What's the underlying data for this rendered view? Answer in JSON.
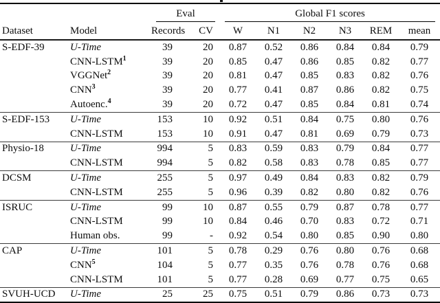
{
  "table": {
    "header": {
      "dataset": "Dataset",
      "model": "Model",
      "eval_group": "Eval",
      "f1_group": "Global F1 scores",
      "records": "Records",
      "cv": "CV",
      "f1_cols": [
        "W",
        "N1",
        "N2",
        "N3",
        "REM",
        "mean"
      ]
    },
    "groups": [
      {
        "dataset": "S-EDF-39",
        "rows": [
          {
            "model": "U-Time",
            "italic": true,
            "sup": "",
            "records": "39",
            "cv": "20",
            "scores": [
              "0.87",
              "0.52",
              "0.86",
              "0.84",
              "0.84",
              "0.79"
            ]
          },
          {
            "model": "CNN-LSTM",
            "italic": false,
            "sup": "1",
            "records": "39",
            "cv": "20",
            "scores": [
              "0.85",
              "0.47",
              "0.86",
              "0.85",
              "0.82",
              "0.77"
            ]
          },
          {
            "model": "VGGNet",
            "italic": false,
            "sup": "2",
            "records": "39",
            "cv": "20",
            "scores": [
              "0.81",
              "0.47",
              "0.85",
              "0.83",
              "0.82",
              "0.76"
            ]
          },
          {
            "model": "CNN",
            "italic": false,
            "sup": "3",
            "records": "39",
            "cv": "20",
            "scores": [
              "0.77",
              "0.41",
              "0.87",
              "0.86",
              "0.82",
              "0.75"
            ]
          },
          {
            "model": "Autoenc.",
            "italic": false,
            "sup": "4",
            "records": "39",
            "cv": "20",
            "scores": [
              "0.72",
              "0.47",
              "0.85",
              "0.84",
              "0.81",
              "0.74"
            ]
          }
        ]
      },
      {
        "dataset": "S-EDF-153",
        "rows": [
          {
            "model": "U-Time",
            "italic": true,
            "sup": "",
            "records": "153",
            "cv": "10",
            "scores": [
              "0.92",
              "0.51",
              "0.84",
              "0.75",
              "0.80",
              "0.76"
            ]
          },
          {
            "model": "CNN-LSTM",
            "italic": false,
            "sup": "",
            "records": "153",
            "cv": "10",
            "scores": [
              "0.91",
              "0.47",
              "0.81",
              "0.69",
              "0.79",
              "0.73"
            ]
          }
        ]
      },
      {
        "dataset": "Physio-18",
        "rows": [
          {
            "model": "U-Time",
            "italic": true,
            "sup": "",
            "records": "994",
            "cv": "5",
            "scores": [
              "0.83",
              "0.59",
              "0.83",
              "0.79",
              "0.84",
              "0.77"
            ]
          },
          {
            "model": "CNN-LSTM",
            "italic": false,
            "sup": "",
            "records": "994",
            "cv": "5",
            "scores": [
              "0.82",
              "0.58",
              "0.83",
              "0.78",
              "0.85",
              "0.77"
            ]
          }
        ]
      },
      {
        "dataset": "DCSM",
        "rows": [
          {
            "model": "U-Time",
            "italic": true,
            "sup": "",
            "records": "255",
            "cv": "5",
            "scores": [
              "0.97",
              "0.49",
              "0.84",
              "0.83",
              "0.82",
              "0.79"
            ]
          },
          {
            "model": "CNN-LSTM",
            "italic": false,
            "sup": "",
            "records": "255",
            "cv": "5",
            "scores": [
              "0.96",
              "0.39",
              "0.82",
              "0.80",
              "0.82",
              "0.76"
            ]
          }
        ]
      },
      {
        "dataset": "ISRUC",
        "rows": [
          {
            "model": "U-Time",
            "italic": true,
            "sup": "",
            "records": "99",
            "cv": "10",
            "scores": [
              "0.87",
              "0.55",
              "0.79",
              "0.87",
              "0.78",
              "0.77"
            ]
          },
          {
            "model": "CNN-LSTM",
            "italic": false,
            "sup": "",
            "records": "99",
            "cv": "10",
            "scores": [
              "0.84",
              "0.46",
              "0.70",
              "0.83",
              "0.72",
              "0.71"
            ]
          },
          {
            "model": "Human obs.",
            "italic": false,
            "sup": "",
            "records": "99",
            "cv": "-",
            "scores": [
              "0.92",
              "0.54",
              "0.80",
              "0.85",
              "0.90",
              "0.80"
            ]
          }
        ]
      },
      {
        "dataset": "CAP",
        "rows": [
          {
            "model": "U-Time",
            "italic": true,
            "sup": "",
            "records": "101",
            "cv": "5",
            "scores": [
              "0.78",
              "0.29",
              "0.76",
              "0.80",
              "0.76",
              "0.68"
            ]
          },
          {
            "model": "CNN",
            "italic": false,
            "sup": "5",
            "records": "104",
            "cv": "5",
            "scores": [
              "0.77",
              "0.35",
              "0.76",
              "0.78",
              "0.76",
              "0.68"
            ]
          },
          {
            "model": "CNN-LSTM",
            "italic": false,
            "sup": "",
            "records": "101",
            "cv": "5",
            "scores": [
              "0.77",
              "0.28",
              "0.69",
              "0.77",
              "0.75",
              "0.65"
            ]
          }
        ]
      },
      {
        "dataset": "SVUH-UCD",
        "rows": [
          {
            "model": "U-Time",
            "italic": true,
            "sup": "",
            "records": "25",
            "cv": "25",
            "scores": [
              "0.75",
              "0.51",
              "0.79",
              "0.86",
              "0.73",
              "0.73"
            ]
          }
        ]
      }
    ]
  }
}
